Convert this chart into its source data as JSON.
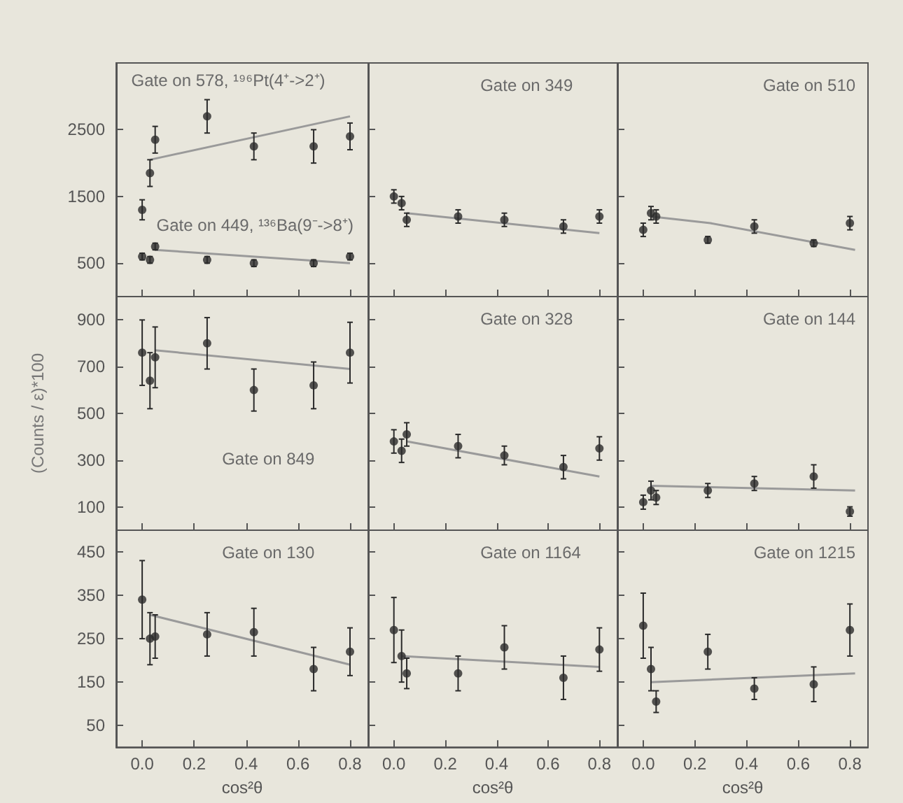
{
  "chart_data": [
    {
      "type": "scatter",
      "annotations": [
        "Gate on 578, ¹⁹⁶Pt(4⁺->2⁺)",
        "Gate on 449, ¹³⁶Ba(9⁻->8⁺)"
      ],
      "xlim": [
        -0.1,
        0.87
      ],
      "xticks": [
        0,
        0.2,
        0.4,
        0.6,
        0.8
      ],
      "ylim": [
        0,
        3500
      ],
      "yticks": [
        500,
        1500,
        2500
      ],
      "tick_labels": "y",
      "grid": false,
      "marker": "circle",
      "x": [
        0,
        0.03,
        0.05,
        0.25,
        0.43,
        0.66,
        0.8
      ],
      "series": [
        {
          "type": "scatter",
          "color": "#2a2a2a",
          "values": [
            1300,
            1850,
            2350,
            2700,
            2250,
            2250,
            2400
          ],
          "errors": [
            150,
            200,
            200,
            250,
            200,
            250,
            200
          ]
        },
        {
          "type": "line",
          "color": "#9a9a9a",
          "x": [
            0.03,
            0.8
          ],
          "values": [
            2050,
            2700
          ],
          "marker": "none"
        },
        {
          "type": "scatter",
          "color": "#2a2a2a",
          "values": [
            600,
            550,
            750,
            550,
            500,
            500,
            600
          ],
          "errors": [
            50,
            50,
            50,
            50,
            50,
            50,
            50
          ]
        },
        {
          "type": "line",
          "color": "#9a9a9a",
          "x": [
            0.05,
            0.8
          ],
          "values": [
            700,
            500
          ],
          "marker": "none"
        }
      ]
    },
    {
      "type": "scatter",
      "annotations": [
        "Gate on 349"
      ],
      "xlim": [
        -0.1,
        0.87
      ],
      "xticks": [
        0,
        0.2,
        0.4,
        0.6,
        0.8
      ],
      "ylim": [
        0,
        3500
      ],
      "yticks": [
        500,
        1500,
        2500
      ],
      "tick_labels": false,
      "grid": false,
      "marker": "circle",
      "x": [
        0,
        0.03,
        0.05,
        0.25,
        0.43,
        0.66,
        0.8
      ],
      "series": [
        {
          "type": "scatter",
          "color": "#2a2a2a",
          "values": [
            1500,
            1400,
            1150,
            1200,
            1150,
            1050,
            1200
          ],
          "errors": [
            100,
            100,
            100,
            100,
            100,
            100,
            100
          ]
        },
        {
          "type": "line",
          "color": "#9a9a9a",
          "x": [
            0.05,
            0.8
          ],
          "values": [
            1250,
            950
          ],
          "marker": "none"
        }
      ]
    },
    {
      "type": "scatter",
      "annotations": [
        "Gate on 510"
      ],
      "xlim": [
        -0.1,
        0.87
      ],
      "xticks": [
        0,
        0.2,
        0.4,
        0.6,
        0.8
      ],
      "ylim": [
        0,
        3500
      ],
      "yticks": [
        500,
        1500,
        2500
      ],
      "tick_labels": false,
      "grid": false,
      "marker": "circle",
      "x": [
        0,
        0.03,
        0.05,
        0.25,
        0.43,
        0.66,
        0.8
      ],
      "series": [
        {
          "type": "scatter",
          "color": "#2a2a2a",
          "values": [
            1000,
            1250,
            1200,
            850,
            1050,
            800,
            1100
          ],
          "errors": [
            100,
            100,
            100,
            50,
            100,
            50,
            100
          ]
        },
        {
          "type": "line",
          "color": "#9a9a9a",
          "x": [
            0.03,
            0.26,
            0.82
          ],
          "values": [
            1200,
            1100,
            700
          ],
          "marker": "none"
        }
      ]
    },
    {
      "type": "scatter",
      "annotations": [
        "Gate on 849"
      ],
      "ylabel": "(Counts / ε)*100",
      "xlim": [
        -0.1,
        0.87
      ],
      "xticks": [
        0,
        0.2,
        0.4,
        0.6,
        0.8
      ],
      "ylim": [
        0,
        1000
      ],
      "yticks": [
        100,
        300,
        500,
        700,
        900
      ],
      "tick_labels": "y",
      "grid": false,
      "marker": "circle",
      "x": [
        0,
        0.03,
        0.05,
        0.25,
        0.43,
        0.66,
        0.8
      ],
      "series": [
        {
          "type": "scatter",
          "color": "#2a2a2a",
          "values": [
            760,
            640,
            740,
            800,
            600,
            620,
            760
          ],
          "errors": [
            140,
            120,
            130,
            110,
            90,
            100,
            130
          ]
        },
        {
          "type": "line",
          "color": "#9a9a9a",
          "x": [
            0.05,
            0.8
          ],
          "values": [
            770,
            690
          ],
          "marker": "none"
        }
      ]
    },
    {
      "type": "scatter",
      "annotations": [
        "Gate on 328"
      ],
      "xlim": [
        -0.1,
        0.87
      ],
      "xticks": [
        0,
        0.2,
        0.4,
        0.6,
        0.8
      ],
      "ylim": [
        0,
        1000
      ],
      "yticks": [
        100,
        300,
        500,
        700,
        900
      ],
      "tick_labels": false,
      "grid": false,
      "marker": "circle",
      "x": [
        0,
        0.03,
        0.05,
        0.25,
        0.43,
        0.66,
        0.8
      ],
      "series": [
        {
          "type": "scatter",
          "color": "#2a2a2a",
          "values": [
            380,
            340,
            410,
            360,
            320,
            270,
            350
          ],
          "errors": [
            50,
            50,
            50,
            50,
            40,
            50,
            50
          ]
        },
        {
          "type": "line",
          "color": "#9a9a9a",
          "x": [
            0.05,
            0.8
          ],
          "values": [
            380,
            230
          ],
          "marker": "none"
        }
      ]
    },
    {
      "type": "scatter",
      "annotations": [
        "Gate on 144"
      ],
      "xlim": [
        -0.1,
        0.87
      ],
      "xticks": [
        0,
        0.2,
        0.4,
        0.6,
        0.8
      ],
      "ylim": [
        0,
        1000
      ],
      "yticks": [
        100,
        300,
        500,
        700,
        900
      ],
      "tick_labels": false,
      "grid": false,
      "marker": "circle",
      "x": [
        0,
        0.03,
        0.05,
        0.25,
        0.43,
        0.66,
        0.8
      ],
      "series": [
        {
          "type": "scatter",
          "color": "#2a2a2a",
          "values": [
            120,
            170,
            140,
            170,
            200,
            230,
            80
          ],
          "errors": [
            30,
            40,
            30,
            30,
            30,
            50,
            20
          ]
        },
        {
          "type": "line",
          "color": "#9a9a9a",
          "x": [
            0.03,
            0.82
          ],
          "values": [
            190,
            170
          ],
          "marker": "none"
        }
      ]
    },
    {
      "type": "scatter",
      "annotations": [
        "Gate on 130"
      ],
      "xlabel": "cos²θ",
      "xlim": [
        -0.1,
        0.87
      ],
      "xticks": [
        {
          "value": 0,
          "label": "0.0"
        },
        {
          "value": 0.2,
          "label": "0.2"
        },
        {
          "value": 0.4,
          "label": "0.4"
        },
        {
          "value": 0.6,
          "label": "0.6"
        },
        {
          "value": 0.8,
          "label": "0.8"
        }
      ],
      "ylim": [
        0,
        500
      ],
      "yticks": [
        50,
        150,
        250,
        350,
        450
      ],
      "grid": false,
      "marker": "circle",
      "x": [
        0,
        0.03,
        0.05,
        0.25,
        0.43,
        0.66,
        0.8
      ],
      "series": [
        {
          "type": "scatter",
          "color": "#2a2a2a",
          "values": [
            340,
            250,
            255,
            260,
            265,
            180,
            220
          ],
          "errors": [
            90,
            60,
            50,
            50,
            55,
            50,
            55
          ]
        },
        {
          "type": "line",
          "color": "#9a9a9a",
          "x": [
            0.03,
            0.8
          ],
          "values": [
            305,
            190
          ],
          "marker": "none"
        }
      ]
    },
    {
      "type": "scatter",
      "annotations": [
        "Gate on 1164"
      ],
      "xlabel": "cos²θ",
      "xlim": [
        -0.1,
        0.87
      ],
      "xticks": [
        {
          "value": 0,
          "label": "0.0"
        },
        {
          "value": 0.2,
          "label": "0.2"
        },
        {
          "value": 0.4,
          "label": "0.4"
        },
        {
          "value": 0.6,
          "label": "0.6"
        },
        {
          "value": 0.8,
          "label": "0.8"
        }
      ],
      "ylim": [
        0,
        500
      ],
      "yticks": [
        50,
        150,
        250,
        350,
        450
      ],
      "tick_labels": "x",
      "grid": false,
      "marker": "circle",
      "x": [
        0,
        0.03,
        0.05,
        0.25,
        0.43,
        0.66,
        0.8
      ],
      "series": [
        {
          "type": "scatter",
          "color": "#2a2a2a",
          "values": [
            270,
            210,
            170,
            170,
            230,
            160,
            225
          ],
          "errors": [
            75,
            60,
            35,
            40,
            50,
            50,
            50
          ]
        },
        {
          "type": "line",
          "color": "#9a9a9a",
          "x": [
            0.03,
            0.8
          ],
          "values": [
            210,
            185
          ],
          "marker": "none"
        }
      ]
    },
    {
      "type": "scatter",
      "annotations": [
        "Gate on 1215"
      ],
      "xlabel": "cos²θ",
      "xlim": [
        -0.1,
        0.87
      ],
      "xticks": [
        {
          "value": 0,
          "label": "0.0"
        },
        {
          "value": 0.2,
          "label": "0.2"
        },
        {
          "value": 0.4,
          "label": "0.4"
        },
        {
          "value": 0.6,
          "label": "0.6"
        },
        {
          "value": 0.8,
          "label": "0.8"
        }
      ],
      "ylim": [
        0,
        500
      ],
      "yticks": [
        50,
        150,
        250,
        350,
        450
      ],
      "tick_labels": "x",
      "grid": false,
      "marker": "circle",
      "x": [
        0,
        0.03,
        0.05,
        0.25,
        0.43,
        0.66,
        0.8
      ],
      "series": [
        {
          "type": "scatter",
          "color": "#2a2a2a",
          "values": [
            280,
            180,
            105,
            220,
            135,
            145,
            270
          ],
          "errors": [
            75,
            50,
            25,
            40,
            25,
            40,
            60
          ]
        },
        {
          "type": "line",
          "color": "#9a9a9a",
          "x": [
            0.03,
            0.82
          ],
          "values": [
            150,
            170
          ],
          "marker": "none"
        }
      ]
    }
  ]
}
